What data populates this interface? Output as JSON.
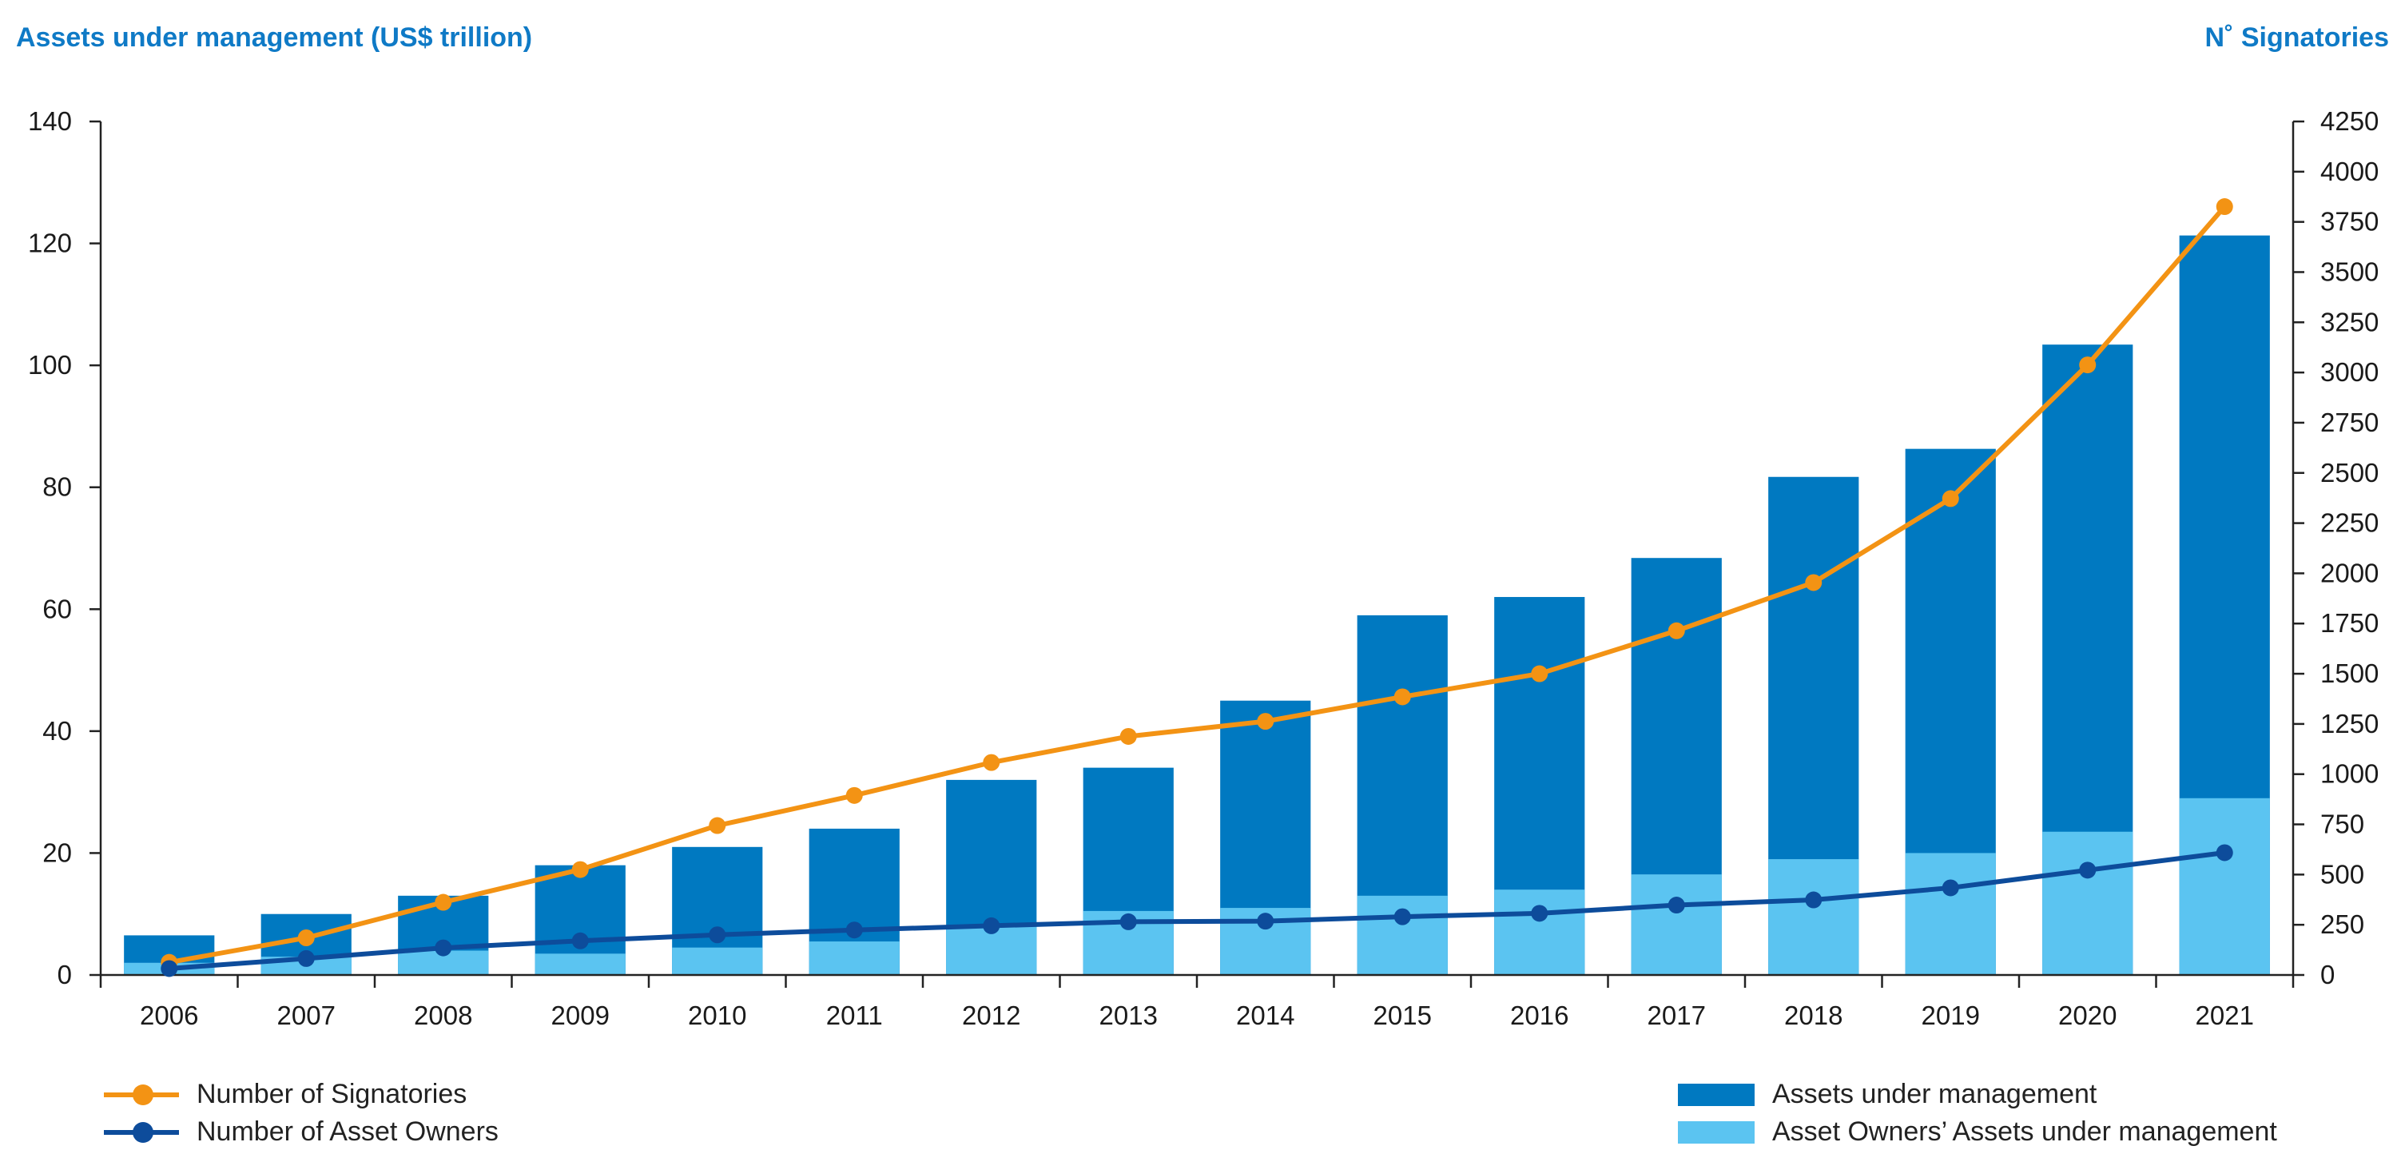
{
  "chart_data": {
    "type": "bar",
    "subtype": "stacked-bar-with-lines",
    "left_axis_title": "Assets under management (US$ trillion)",
    "right_axis_title": "N˚ Signatories",
    "categories": [
      "2006",
      "2007",
      "2008",
      "2009",
      "2010",
      "2011",
      "2012",
      "2013",
      "2014",
      "2015",
      "2016",
      "2017",
      "2018",
      "2019",
      "2020",
      "2021"
    ],
    "ylim": [
      0,
      140
    ],
    "yticks": [
      0,
      20,
      40,
      60,
      80,
      100,
      120,
      140
    ],
    "y2lim": [
      0,
      4250
    ],
    "y2ticks": [
      0,
      250,
      500,
      750,
      1000,
      1250,
      1500,
      1750,
      2000,
      2250,
      2500,
      2750,
      3000,
      3250,
      3500,
      3750,
      4000,
      4250
    ],
    "bar_series": [
      {
        "name": "Assets under management",
        "color": "#0079c1",
        "values": [
          6.5,
          10,
          13,
          18,
          21,
          24,
          32,
          34,
          45,
          59,
          62,
          68.4,
          81.7,
          86.3,
          103.4,
          121.3
        ]
      },
      {
        "name": "Asset Owners’ Assets under management",
        "color": "#5bc4f1",
        "values": [
          2,
          3,
          4,
          3.5,
          4.5,
          5.5,
          8,
          10.5,
          11,
          13,
          14,
          16.5,
          19,
          20,
          23.5,
          29
        ]
      }
    ],
    "line_series": [
      {
        "name": "Number of Signatories",
        "color": "#f39314",
        "axis": "right",
        "values": [
          63,
          185,
          362,
          525,
          744,
          894,
          1058,
          1188,
          1263,
          1385,
          1500,
          1714,
          1954,
          2372,
          3038,
          3826
        ]
      },
      {
        "name": "Number of Asset Owners",
        "color": "#0d4c9b",
        "axis": "right",
        "values": [
          32,
          82,
          135,
          170,
          200,
          224,
          245,
          265,
          268,
          290,
          307,
          348,
          374,
          434,
          522,
          609
        ]
      }
    ],
    "legend_position": "bottom",
    "grid": false
  }
}
